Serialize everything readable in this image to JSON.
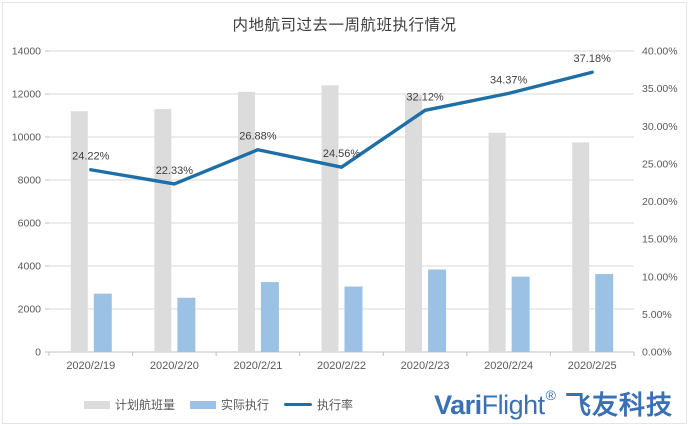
{
  "chart": {
    "title": "内地航司过去一周航班执行情况",
    "logo": {
      "brand_bold": "Vari",
      "brand_light": "Flight",
      "reg_mark": "®",
      "brand_cn": "飞友科技",
      "color": "#3a70b4"
    }
  },
  "chart_data": {
    "type": "combo",
    "title": "内地航司过去一周航班执行情况",
    "categories": [
      "2020/2/19",
      "2020/2/20",
      "2020/2/21",
      "2020/2/22",
      "2020/2/23",
      "2020/2/24",
      "2020/2/25"
    ],
    "series": [
      {
        "name": "计划航班量",
        "type": "bar",
        "axis": "left",
        "color": "#dcdcdc",
        "values": [
          11200,
          11300,
          12100,
          12400,
          11950,
          10200,
          9750
        ]
      },
      {
        "name": "实际执行",
        "type": "bar",
        "axis": "left",
        "color": "#9bc2e4",
        "values": [
          2713,
          2523,
          3252,
          3045,
          3838,
          3506,
          3625
        ]
      },
      {
        "name": "执行率",
        "type": "line",
        "axis": "right",
        "color": "#1e6fa8",
        "values": [
          24.22,
          22.33,
          26.88,
          24.56,
          32.12,
          34.37,
          37.18
        ],
        "labels": [
          "24.22%",
          "22.33%",
          "26.88%",
          "24.56%",
          "32.12%",
          "34.37%",
          "37.18%"
        ]
      }
    ],
    "left_axis": {
      "min": 0,
      "max": 14000,
      "step": 2000,
      "ticks": [
        "0",
        "2000",
        "4000",
        "6000",
        "8000",
        "10000",
        "12000",
        "14000"
      ]
    },
    "right_axis": {
      "min": 0,
      "max": 40,
      "step": 5,
      "ticks": [
        "0.00%",
        "5.00%",
        "10.00%",
        "15.00%",
        "20.00%",
        "25.00%",
        "30.00%",
        "35.00%",
        "40.00%"
      ]
    },
    "grid": true,
    "grid_color": "#d9d9d9",
    "axis_color": "#bfbfbf",
    "legend_position": "bottom"
  }
}
